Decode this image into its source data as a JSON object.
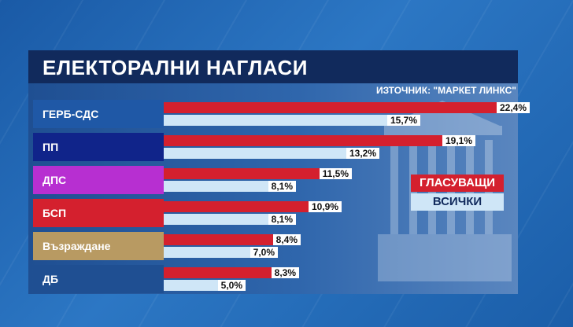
{
  "title": "ЕЛЕКТОРАЛНИ НАГЛАСИ",
  "source": "ИЗТОЧНИК: \"МАРКЕТ ЛИНКС\"",
  "colors": {
    "voters": "#d4202e",
    "all": "#cfe6f7",
    "label_colors": [
      "#1f58a6",
      "#10248a",
      "#b72fd1",
      "#d4202e",
      "#b89a62",
      "#1f4f92"
    ]
  },
  "chart_data": {
    "type": "bar",
    "orientation": "horizontal",
    "categories": [
      "ГЕРБ-СДС",
      "ПП",
      "ДПС",
      "БСП",
      "Възраждане",
      "ДБ"
    ],
    "series": [
      {
        "name": "ГЛАСУВАЩИ",
        "values": [
          22.4,
          19.1,
          11.5,
          10.9,
          8.4,
          8.3
        ],
        "labels": [
          "22,4%",
          "19,1%",
          "11,5%",
          "10,9%",
          "8,4%",
          "8,3%"
        ]
      },
      {
        "name": "ВСИЧКИ",
        "values": [
          15.7,
          13.2,
          8.1,
          8.1,
          7.0,
          5.0
        ],
        "labels": [
          "15,7%",
          "13,2%",
          "8,1%",
          "8,1%",
          "7,0%",
          "5,0%"
        ]
      }
    ],
    "xlim": [
      0,
      22.4
    ],
    "legend": "right",
    "grid": false
  }
}
